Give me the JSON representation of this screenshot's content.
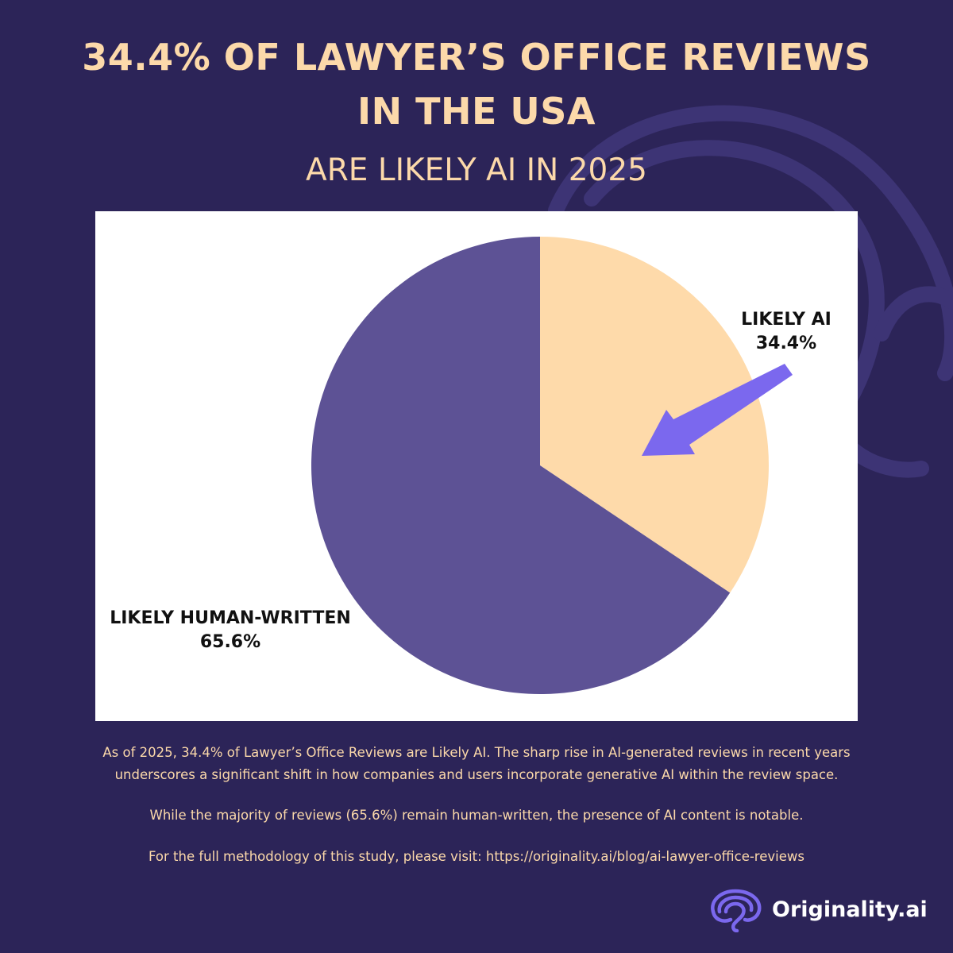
{
  "header": {
    "title_line1": "34.4% OF LAWYER’S OFFICE REVIEWS",
    "title_line2": "IN THE USA",
    "subtitle": "ARE LIKELY AI IN 2025"
  },
  "chart_data": {
    "type": "pie",
    "slices": [
      {
        "name": "LIKELY AI",
        "value": 34.4,
        "value_label": "34.4%",
        "color": "#fedaaa"
      },
      {
        "name": "LIKELY HUMAN-WRITTEN",
        "value": 65.6,
        "value_label": "65.6%",
        "color": "#5d5295"
      }
    ],
    "start": "12 o'clock",
    "direction": "clockwise",
    "arrow_color": "#7b68ee"
  },
  "description": {
    "paragraph1": "As of 2025, 34.4% of Lawyer’s Office Reviews are Likely AI. The sharp rise in AI-generated reviews in recent years underscores a significant shift in how companies and users incorporate generative AI within the review space.",
    "paragraph2": "While the majority of reviews (65.6%) remain human-written, the presence of AI content is notable.",
    "paragraph3": "For the full methodology of this study, please visit: https://originality.ai/blog/ai-lawyer-office-reviews"
  },
  "brand": {
    "name": "Originality.ai",
    "logo_icon": "brain-icon"
  },
  "colors": {
    "background": "#2c2458",
    "accent_text": "#fcd9aa",
    "brand_purple": "#7b68ee"
  }
}
